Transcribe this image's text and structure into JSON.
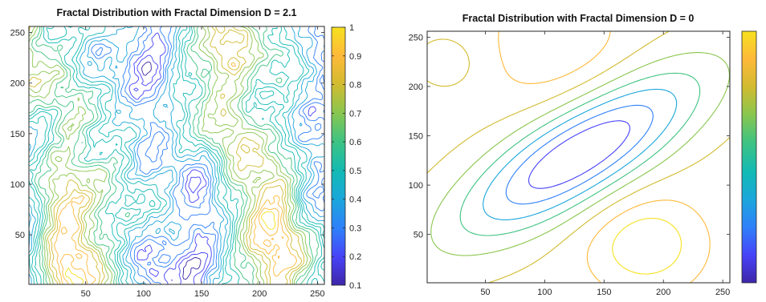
{
  "colormap": [
    "#3e26a8",
    "#4743f8",
    "#2f80fa",
    "#1ba6dc",
    "#12bab5",
    "#3fc381",
    "#8ac64e",
    "#d2bb30",
    "#feb93a",
    "#f6e11f"
  ],
  "chart_data": [
    {
      "type": "contour",
      "title": "Fractal Distribution with Fractal Dimension D = 2.1",
      "xlabel": "",
      "ylabel": "",
      "xlim": [
        1,
        256
      ],
      "ylim": [
        1,
        256
      ],
      "xticks": [
        50,
        100,
        150,
        200,
        250
      ],
      "yticks": [
        50,
        100,
        150,
        200,
        250
      ],
      "colorbar": {
        "min": 0.1,
        "max": 1,
        "ticks": [
          0.1,
          0.2,
          0.3,
          0.4,
          0.5,
          0.6,
          0.7,
          0.8,
          0.9,
          1
        ],
        "labels": [
          "0.1",
          "0.2",
          "0.3",
          "0.4",
          "0.5",
          "0.6",
          "0.7",
          "0.8",
          "0.9",
          "1"
        ]
      },
      "grid": false,
      "legend": "none"
    },
    {
      "type": "contour",
      "title": "Fractal Distribution with Fractal Dimension D = 0",
      "xlabel": "",
      "ylabel": "",
      "xlim": [
        1,
        256
      ],
      "ylim": [
        1,
        256
      ],
      "xticks": [
        50,
        100,
        150,
        200,
        250
      ],
      "yticks": [
        50,
        100,
        150,
        200,
        250
      ],
      "colorbar": {
        "min": 0.1,
        "max": 1,
        "ticks": [],
        "labels": []
      },
      "grid": false,
      "legend": "none"
    }
  ]
}
